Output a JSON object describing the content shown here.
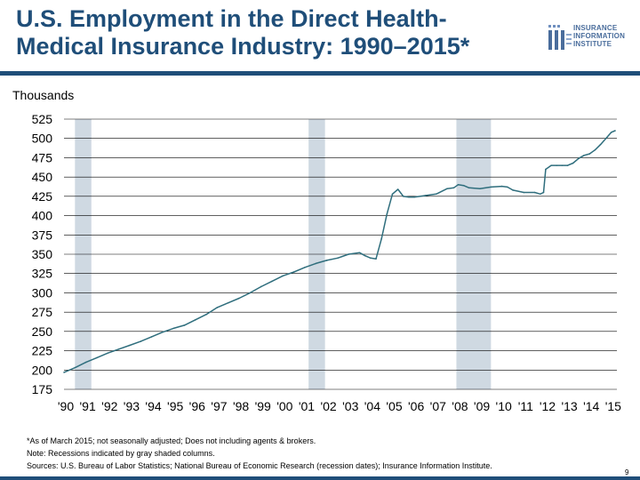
{
  "slide": {
    "title_line1": "U.S. Employment in the Direct Health-",
    "title_line2": "Medical Insurance Industry: 1990–2015*",
    "units": "Thousands",
    "notes": [
      "*As of March 2015; not seasonally adjusted; Does not including agents & brokers.",
      "Note: Recessions indicated by gray shaded columns.",
      "Sources: U.S. Bureau of Labor Statistics;  National Bureau of Economic Research (recession dates); Insurance Information Institute."
    ],
    "page_number": "9"
  },
  "logo": {
    "mark": "iii",
    "lines": [
      "INSURANCE",
      "INFORMATION",
      "INSTITUTE"
    ]
  },
  "colors": {
    "title": "#1f4e79",
    "line": "#2f6e7d",
    "recession": "#cfd9e2",
    "grid": "#000000",
    "rule": "#1f4e79"
  },
  "chart_data": {
    "type": "line",
    "title": "U.S. Employment in the Direct Health-Medical Insurance Industry: 1990–2015*",
    "ylabel": "Thousands",
    "xlabel": "",
    "ylim": [
      175,
      525
    ],
    "yticks": [
      175,
      200,
      225,
      250,
      275,
      300,
      325,
      350,
      375,
      400,
      425,
      450,
      475,
      500,
      525
    ],
    "xlim": [
      1990.0,
      2015.25
    ],
    "xtick_positions": [
      1990,
      1991,
      1992,
      1993,
      1994,
      1995,
      1996,
      1997,
      1998,
      1999,
      2000,
      2001,
      2002,
      2003,
      2004,
      2005,
      2006,
      2007,
      2008,
      2009,
      2010,
      2011,
      2012,
      2013,
      2014,
      2015
    ],
    "xtick_labels": [
      "'90",
      "'91",
      "'92",
      "'93",
      "'94",
      "'95",
      "'96",
      "'97",
      "'98",
      "'99",
      "'00",
      "'01",
      "'02",
      "'03",
      "'04",
      "'05",
      "'06",
      "'07",
      "'08",
      "'09",
      "'10",
      "'11",
      "'12",
      "'13",
      "'14",
      "'15"
    ],
    "recessions": [
      {
        "start": 1990.5,
        "end": 1991.25
      },
      {
        "start": 2001.17,
        "end": 2001.92
      },
      {
        "start": 2007.92,
        "end": 2009.5
      }
    ],
    "grid": "horizontal",
    "series": [
      {
        "name": "Direct health-medical insurance employment",
        "x": [
          1990.0,
          1990.5,
          1991.0,
          1991.5,
          1992.0,
          1992.5,
          1993.0,
          1993.5,
          1994.0,
          1994.5,
          1995.0,
          1995.5,
          1996.0,
          1996.5,
          1997.0,
          1997.5,
          1998.0,
          1998.5,
          1999.0,
          1999.5,
          2000.0,
          2000.5,
          2001.0,
          2001.5,
          2002.0,
          2002.5,
          2003.0,
          2003.5,
          2003.75,
          2004.0,
          2004.25,
          2004.5,
          2004.75,
          2005.0,
          2005.25,
          2005.5,
          2005.75,
          2006.0,
          2006.5,
          2007.0,
          2007.5,
          2007.8,
          2008.0,
          2008.25,
          2008.5,
          2009.0,
          2009.5,
          2010.0,
          2010.25,
          2010.5,
          2011.0,
          2011.5,
          2011.75,
          2011.9,
          2012.0,
          2012.25,
          2012.5,
          2012.75,
          2013.0,
          2013.25,
          2013.5,
          2013.75,
          2014.0,
          2014.25,
          2014.5,
          2014.75,
          2015.0,
          2015.17
        ],
        "y": [
          197,
          203,
          210,
          216,
          222,
          227,
          232,
          237,
          243,
          249,
          254,
          258,
          265,
          272,
          281,
          287,
          293,
          300,
          308,
          315,
          322,
          327,
          333,
          338,
          342,
          345,
          350,
          352,
          348,
          345,
          344,
          370,
          402,
          428,
          434,
          425,
          424,
          424,
          426,
          428,
          435,
          436,
          440,
          439,
          436,
          435,
          437,
          438,
          437,
          433,
          430,
          430,
          428,
          430,
          460,
          465,
          465,
          465,
          465,
          468,
          474,
          478,
          480,
          485,
          492,
          500,
          508,
          510
        ]
      }
    ]
  }
}
